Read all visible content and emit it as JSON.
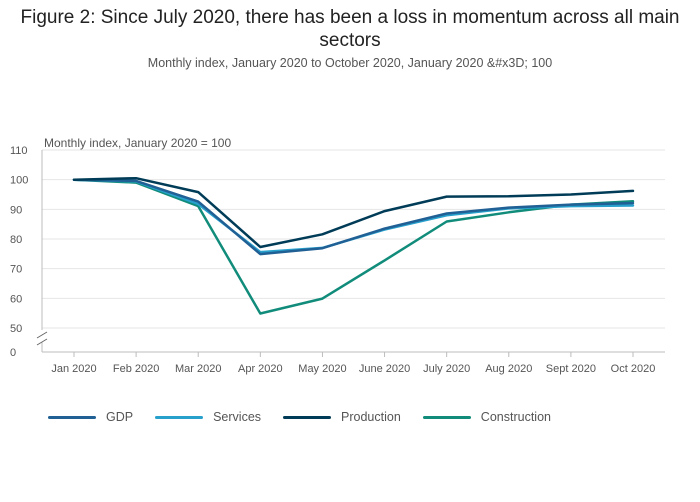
{
  "chart_data": {
    "type": "line",
    "title": "Figure 2: Since July 2020, there has been a loss in momentum across all main sectors",
    "subtitle": "Monthly index, January 2020 to October 2020, January 2020 &#x3D; 100",
    "ylabel": "Monthly index, January 2020 = 100",
    "xlabel": "",
    "categories": [
      "Jan 2020",
      "Feb 2020",
      "Mar 2020",
      "Apr 2020",
      "May 2020",
      "June 2020",
      "July 2020",
      "Aug 2020",
      "Sept 2020",
      "Oct 2020"
    ],
    "y_ticks": [
      "110",
      "100",
      "90",
      "80",
      "70",
      "60",
      "50",
      "0"
    ],
    "ylim": [
      50,
      110
    ],
    "axis_break": true,
    "grid": true,
    "legend_position": "bottom",
    "series": [
      {
        "name": "GDP",
        "color": "#206095",
        "values": [
          100,
          99.6,
          92.6,
          74.9,
          76.9,
          83.5,
          88.6,
          90.6,
          91.6,
          92.1
        ]
      },
      {
        "name": "Services",
        "color": "#27a0cc",
        "values": [
          100,
          99.4,
          91.8,
          75.6,
          77.0,
          83.2,
          88.0,
          90.3,
          91.1,
          91.3
        ]
      },
      {
        "name": "Production",
        "color": "#003c57",
        "values": [
          100,
          100.5,
          95.8,
          77.3,
          81.6,
          89.4,
          94.3,
          94.4,
          95.0,
          96.2
        ]
      },
      {
        "name": "Construction",
        "color": "#118c7b",
        "values": [
          100,
          99.0,
          91.1,
          54.9,
          59.9,
          72.8,
          85.9,
          89.0,
          91.6,
          92.7
        ]
      }
    ]
  }
}
